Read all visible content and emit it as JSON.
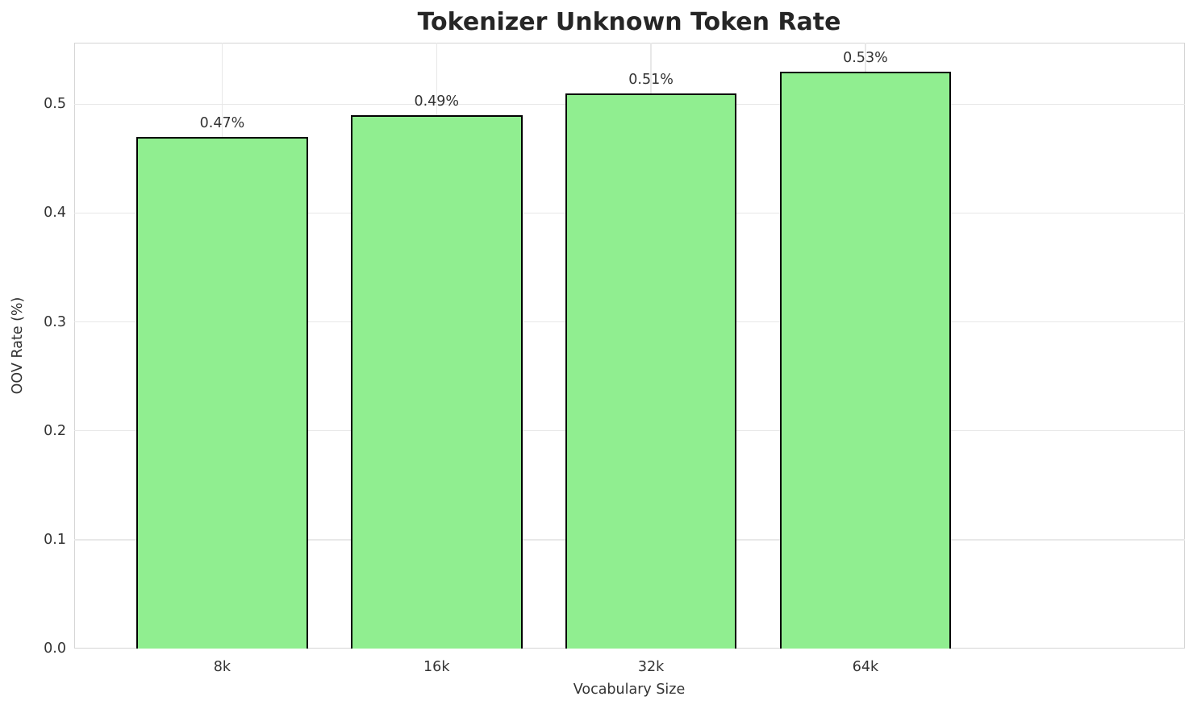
{
  "chart_data": {
    "type": "bar",
    "title": "Tokenizer Unknown Token Rate",
    "xlabel": "Vocabulary Size",
    "ylabel": "OOV Rate (%)",
    "categories": [
      "8k",
      "16k",
      "32k",
      "64k"
    ],
    "values": [
      0.47,
      0.49,
      0.51,
      0.53
    ],
    "bar_labels": [
      "0.47%",
      "0.49%",
      "0.51%",
      "0.53%"
    ],
    "ylim": [
      0,
      0.5565
    ],
    "yticks": [
      0,
      0.1,
      0.2,
      0.3,
      0.4,
      0.5
    ],
    "ytick_labels": [
      "0.0",
      "0.1",
      "0.2",
      "0.3",
      "0.4",
      "0.5"
    ],
    "grid": true,
    "legend": false,
    "bar_width_fraction": 0.8,
    "colors": {
      "bar_fill": "#90ee90",
      "bar_edge": "#000000",
      "grid": "#e8e8e8",
      "spine": "#d5d5d5",
      "title_text": "#262626",
      "label_text": "#333333",
      "background": "#ffffff"
    }
  }
}
